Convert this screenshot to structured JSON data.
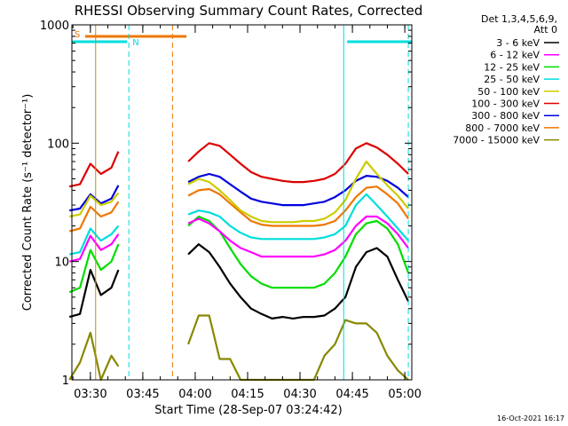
{
  "chart_data": {
    "type": "line",
    "title": "RHESSI Observing Summary Count Rates, Corrected",
    "xlabel": "Start Time (28-Sep-07 03:24:42)",
    "ylabel": "Corrected Count Rate (s⁻¹ detector⁻¹)",
    "yscale": "log",
    "ylim": [
      1,
      1000
    ],
    "xlim": [
      "03:24:42",
      "05:02:00"
    ],
    "x_tick_labels": [
      "03:30",
      "03:45",
      "04:00",
      "04:15",
      "04:30",
      "04:45",
      "05:00"
    ],
    "y_tick_labels": [
      "1",
      "10",
      "100",
      "1000"
    ],
    "grid": false,
    "legend_position": "right, outside plot",
    "legend_header": [
      "Det 1,3,4,5,6,9,",
      "Att 0"
    ],
    "timestamp": "16-Oct-2021 16:17",
    "x": [
      "03:24",
      "03:27",
      "03:30",
      "03:33",
      "03:36",
      "03:38",
      "03:52",
      "03:55",
      "03:58",
      "04:01",
      "04:04",
      "04:07",
      "04:10",
      "04:13",
      "04:16",
      "04:19",
      "04:22",
      "04:25",
      "04:28",
      "04:31",
      "04:34",
      "04:37",
      "04:40",
      "04:43",
      "04:46",
      "04:49",
      "04:52",
      "04:55",
      "04:58",
      "05:01"
    ],
    "series": [
      {
        "name": "3 - 6 keV",
        "color": "#000000",
        "values": [
          3.4,
          3.6,
          8.5,
          5.2,
          6.0,
          8.5,
          null,
          null,
          11.5,
          14.0,
          12.0,
          9.0,
          6.5,
          5.0,
          4.0,
          3.6,
          3.3,
          3.4,
          3.3,
          3.4,
          3.4,
          3.5,
          4.0,
          5.0,
          9.0,
          12.0,
          13.0,
          11.0,
          7.0,
          4.6
        ]
      },
      {
        "name": "6 - 12 keV",
        "color": "#ff00ff",
        "values": [
          10.0,
          10.5,
          16.5,
          12.5,
          14.0,
          17.0,
          null,
          null,
          21.0,
          23.0,
          21.0,
          18.0,
          15.0,
          13.0,
          12.0,
          11.0,
          11.0,
          11.0,
          11.0,
          11.0,
          11.0,
          11.5,
          12.5,
          15.0,
          20.0,
          24.0,
          24.0,
          21.0,
          17.0,
          13.0
        ]
      },
      {
        "name": "12 - 25 keV",
        "color": "#00dd00",
        "values": [
          5.5,
          6.0,
          12.5,
          8.5,
          10.0,
          14.0,
          null,
          null,
          20.0,
          24.0,
          22.0,
          18.0,
          13.0,
          9.5,
          7.5,
          6.5,
          6.0,
          6.0,
          6.0,
          6.0,
          6.0,
          6.5,
          8.0,
          11.0,
          17.0,
          21.0,
          22.0,
          19.0,
          14.0,
          8.0
        ]
      },
      {
        "name": "25 - 50 keV",
        "color": "#00dddd",
        "values": [
          11.5,
          12.0,
          19.0,
          15.0,
          17.0,
          20.0,
          null,
          null,
          25.0,
          27.0,
          26.0,
          24.0,
          20.0,
          17.5,
          16.0,
          15.5,
          15.5,
          15.5,
          15.5,
          15.5,
          15.5,
          16.0,
          17.0,
          20.0,
          30.0,
          37.0,
          30.0,
          24.0,
          19.0,
          15.0
        ]
      },
      {
        "name": "50 - 100 keV",
        "color": "#cccc00",
        "values": [
          24.0,
          25.0,
          36.0,
          30.0,
          32.0,
          38.0,
          null,
          null,
          45.0,
          50.0,
          47.0,
          40.0,
          33.0,
          27.0,
          24.0,
          22.0,
          21.5,
          21.5,
          21.5,
          22.0,
          22.0,
          23.0,
          26.0,
          33.0,
          50.0,
          70.0,
          55.0,
          44.0,
          36.0,
          28.0
        ]
      },
      {
        "name": "100 - 300 keV",
        "color": "#dd0000",
        "values": [
          43.0,
          45.0,
          67.0,
          55.0,
          62.0,
          85.0,
          null,
          null,
          70.0,
          85.0,
          100.0,
          95.0,
          80.0,
          67.0,
          57.0,
          52.0,
          50.0,
          48.0,
          47.0,
          47.0,
          48.0,
          50.0,
          55.0,
          67.0,
          90.0,
          100.0,
          92.0,
          80.0,
          67.0,
          55.0
        ]
      },
      {
        "name": "300 - 800 keV",
        "color": "#0000dd",
        "values": [
          27.0,
          28.0,
          37.0,
          31.0,
          34.0,
          44.0,
          null,
          null,
          47.0,
          52.0,
          55.0,
          52.0,
          45.0,
          39.0,
          34.0,
          32.0,
          31.0,
          30.0,
          30.0,
          30.0,
          31.0,
          32.0,
          35.0,
          40.0,
          48.0,
          53.0,
          52.0,
          48.0,
          42.0,
          35.0
        ]
      },
      {
        "name": "800 - 7000 keV",
        "color": "#ee7700",
        "values": [
          18.0,
          19.0,
          29.0,
          24.0,
          26.0,
          32.0,
          null,
          null,
          36.0,
          40.0,
          41.0,
          37.0,
          31.0,
          26.0,
          22.0,
          20.5,
          20.0,
          20.0,
          20.0,
          20.0,
          20.0,
          20.5,
          22.0,
          27.0,
          35.0,
          42.0,
          43.0,
          37.0,
          31.0,
          23.0
        ]
      },
      {
        "name": "7000 - 15000 keV",
        "color": "#888800",
        "values": [
          1.0,
          1.4,
          2.5,
          1.0,
          1.6,
          1.3,
          null,
          null,
          2.0,
          3.5,
          3.5,
          1.5,
          1.5,
          1.0,
          1.0,
          1.0,
          1.0,
          1.0,
          1.0,
          1.0,
          1.0,
          1.6,
          2.0,
          3.2,
          3.0,
          3.0,
          2.5,
          1.6,
          1.2,
          1.0
        ]
      }
    ],
    "flags": [
      {
        "label": "S",
        "color": "#ee7700",
        "start": "03:28:30",
        "end": "03:57:30"
      },
      {
        "label": "N",
        "color": "#00dddd",
        "start": "03:24:42",
        "end": "03:40:30"
      },
      {
        "label": "",
        "color": "#00dddd",
        "start": "04:43:30",
        "end": "05:02:00"
      }
    ],
    "vlines": [
      {
        "time": "03:31:30",
        "color": "#cc8800",
        "style": "solid"
      },
      {
        "time": "03:41:00",
        "color": "#00dddd",
        "style": "dashed"
      },
      {
        "time": "03:53:30",
        "color": "#ee7700",
        "style": "dashed"
      },
      {
        "time": "04:42:30",
        "color": "#00dddd",
        "style": "solid"
      },
      {
        "time": "05:01:00",
        "color": "#00dddd",
        "style": "dashed"
      }
    ]
  }
}
